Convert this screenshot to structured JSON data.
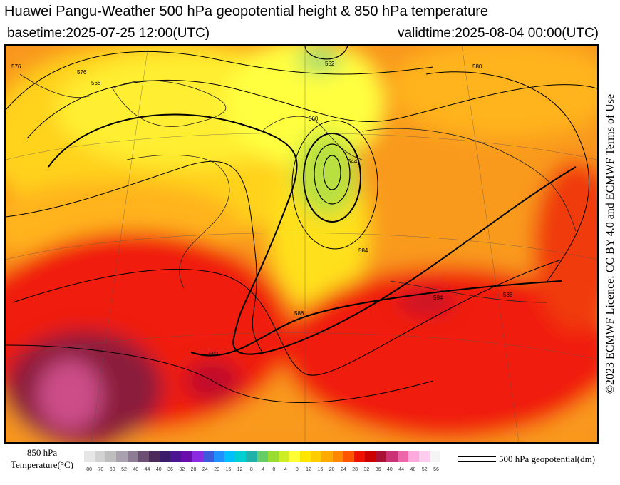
{
  "header": {
    "title": "Huawei Pangu-Weather 500 hPa geopotential height & 850 hPa temperature",
    "basetime": "basetime:2025-07-25 12:00(UTC)",
    "validtime": "validtime:2025-08-04 00:00(UTC)"
  },
  "licence": "©2023 ECMWF Licence: CC BY 4.0 and ECMWF Terms of Use",
  "colorbar": {
    "label": "850 hPa Temperature(°C)",
    "ticks": [
      "-80",
      "-70",
      "-60",
      "-52",
      "-48",
      "-44",
      "-40",
      "-36",
      "-32",
      "-28",
      "-24",
      "-20",
      "-16",
      "-12",
      "-8",
      "-4",
      "0",
      "4",
      "8",
      "12",
      "16",
      "20",
      "24",
      "28",
      "32",
      "36",
      "40",
      "44",
      "48",
      "52",
      "56"
    ],
    "colors": [
      "#e6e6e6",
      "#d2d2d2",
      "#bebebe",
      "#a9a1ad",
      "#8d7c93",
      "#6d4f74",
      "#4d2a5c",
      "#3b1c6b",
      "#4b1591",
      "#6a0dad",
      "#8a2be2",
      "#3b5bdb",
      "#1e90ff",
      "#00bfff",
      "#00ced1",
      "#20b2aa",
      "#66cc66",
      "#99dd33",
      "#ccee22",
      "#ffff33",
      "#ffe600",
      "#ffcc00",
      "#ffaa00",
      "#ff8800",
      "#ff5500",
      "#ee1100",
      "#cc0000",
      "#aa1133",
      "#cc3377",
      "#ee66aa",
      "#ffaadd",
      "#ffccee",
      "#f5f5f5"
    ]
  },
  "legend": {
    "label": "500 hPa geopotential(dm)"
  },
  "map": {
    "contour_labels": [
      "552",
      "544",
      "560",
      "568",
      "576",
      "584",
      "588",
      "592",
      "580",
      "576",
      "588",
      "584"
    ]
  }
}
